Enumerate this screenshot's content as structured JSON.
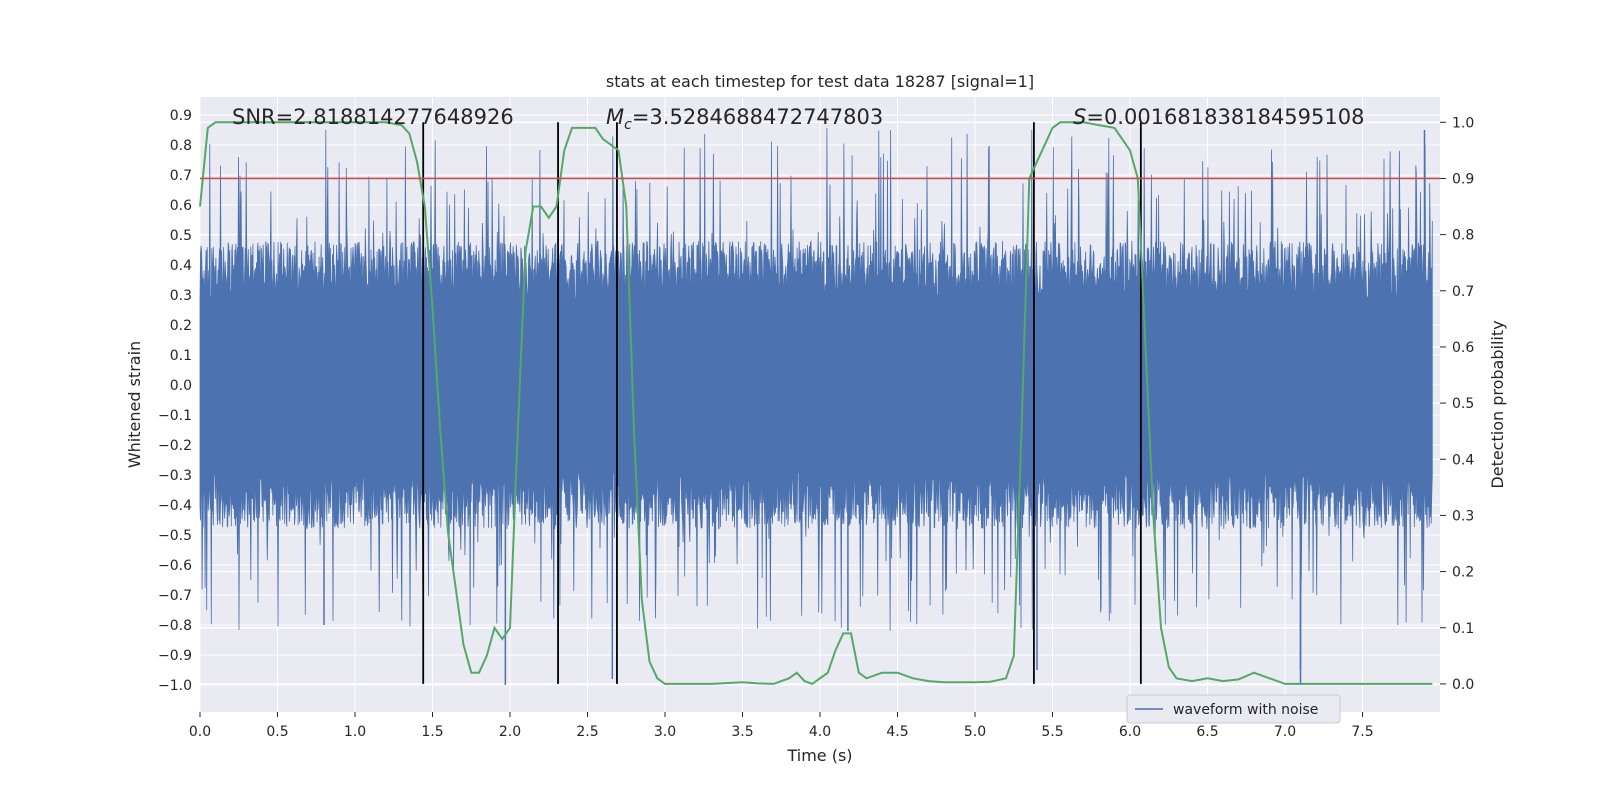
{
  "chart_data": {
    "type": "line",
    "title": "stats at each timestep for test data 18287 [signal=1]",
    "xlabel": "Time (s)",
    "ylabel_left": "Whitened strain",
    "ylabel_right": "Detection probability",
    "xlim": [
      0.0,
      8.0
    ],
    "ylim_left": [
      -1.09,
      0.96
    ],
    "ylim_right": [
      -0.05,
      1.045
    ],
    "xticks": [
      "0.0",
      "0.5",
      "1.0",
      "1.5",
      "2.0",
      "2.5",
      "3.0",
      "3.5",
      "4.0",
      "4.5",
      "5.0",
      "5.5",
      "6.0",
      "6.5",
      "7.0",
      "7.5"
    ],
    "yticks_left": [
      "0.9",
      "0.8",
      "0.7",
      "0.6",
      "0.5",
      "0.4",
      "0.3",
      "0.2",
      "0.1",
      "0.0",
      "−0.1",
      "−0.2",
      "−0.3",
      "−0.4",
      "−0.5",
      "−0.6",
      "−0.7",
      "−0.8",
      "−0.9",
      "−1.0"
    ],
    "yticks_right": [
      "1.0",
      "0.9",
      "0.8",
      "0.7",
      "0.6",
      "0.5",
      "0.4",
      "0.3",
      "0.2",
      "0.1",
      "0.0"
    ],
    "grid": true,
    "legend": {
      "entries": [
        "waveform with noise"
      ],
      "placement": "lower-right"
    },
    "annotations": {
      "snr": "SNR=2.818814277648926",
      "mc_symbol": "M",
      "mc_sub": "c",
      "mc_value": "=3.5284688472747803",
      "s_symbol": "S",
      "s_value": "=0.0016818381845951​08"
    },
    "threshold": {
      "name": "threshold line",
      "value": 0.9,
      "color": "#c44e52"
    },
    "vertical_markers": [
      1.44,
      2.31,
      2.69,
      5.38,
      6.07
    ],
    "series": [
      {
        "name": "waveform with noise",
        "axis": "left",
        "color": "#4c72b0",
        "description": "high-frequency whitened strain spanning roughly -1.0 to 0.86"
      },
      {
        "name": "detection probability",
        "axis": "right",
        "color": "#55a868",
        "x": [
          0.0,
          0.05,
          0.1,
          0.2,
          0.3,
          0.5,
          0.7,
          1.0,
          1.2,
          1.3,
          1.35,
          1.4,
          1.45,
          1.5,
          1.55,
          1.6,
          1.7,
          1.75,
          1.8,
          1.85,
          1.9,
          1.95,
          2.0,
          2.05,
          2.1,
          2.15,
          2.2,
          2.25,
          2.3,
          2.35,
          2.4,
          2.45,
          2.5,
          2.55,
          2.6,
          2.65,
          2.7,
          2.75,
          2.8,
          2.85,
          2.9,
          2.95,
          3.0,
          3.1,
          3.3,
          3.5,
          3.6,
          3.7,
          3.8,
          3.85,
          3.9,
          3.95,
          4.0,
          4.05,
          4.1,
          4.15,
          4.2,
          4.25,
          4.3,
          4.4,
          4.5,
          4.6,
          4.7,
          4.8,
          5.0,
          5.1,
          5.2,
          5.25,
          5.3,
          5.35,
          5.4,
          5.45,
          5.5,
          5.55,
          5.6,
          5.7,
          5.8,
          5.9,
          6.0,
          6.05,
          6.1,
          6.15,
          6.2,
          6.25,
          6.3,
          6.4,
          6.5,
          6.6,
          6.7,
          6.8,
          6.9,
          7.0,
          7.1,
          7.3,
          7.5,
          7.7,
          7.8,
          7.95
        ],
        "values": [
          0.85,
          0.99,
          1.0,
          1.0,
          1.0,
          1.0,
          1.0,
          1.0,
          1.0,
          0.995,
          0.98,
          0.93,
          0.85,
          0.67,
          0.45,
          0.27,
          0.07,
          0.02,
          0.02,
          0.05,
          0.1,
          0.08,
          0.1,
          0.45,
          0.77,
          0.85,
          0.85,
          0.83,
          0.85,
          0.95,
          0.99,
          0.99,
          0.99,
          0.99,
          0.97,
          0.96,
          0.95,
          0.85,
          0.45,
          0.15,
          0.04,
          0.01,
          0.0,
          0.0,
          0.0,
          0.003,
          0.001,
          0.0,
          0.01,
          0.02,
          0.005,
          0.0,
          0.01,
          0.02,
          0.06,
          0.09,
          0.09,
          0.02,
          0.01,
          0.02,
          0.02,
          0.01,
          0.005,
          0.003,
          0.003,
          0.004,
          0.01,
          0.05,
          0.45,
          0.9,
          0.93,
          0.96,
          0.99,
          1.0,
          1.0,
          1.0,
          0.995,
          0.99,
          0.95,
          0.9,
          0.6,
          0.3,
          0.1,
          0.03,
          0.01,
          0.005,
          0.01,
          0.005,
          0.008,
          0.02,
          0.01,
          0.0,
          0.0,
          0.0,
          0.0,
          0.0,
          0.0,
          0.0
        ]
      }
    ]
  }
}
